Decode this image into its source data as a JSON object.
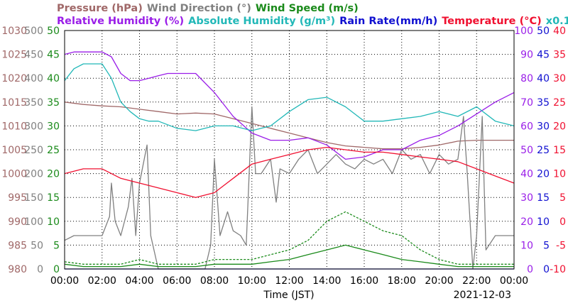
{
  "chart_data": {
    "type": "line",
    "legend": {
      "line1": [
        {
          "text": "Pressure (hPa)",
          "color": "#a06868"
        },
        {
          "text": "Wind Direction (°)",
          "color": "#808080"
        },
        {
          "text": "Wind Speed (m/s)",
          "color": "#1a8a1a"
        }
      ],
      "line2": [
        {
          "text": "Relative Humidity (%)",
          "color": "#9a1ee8"
        },
        {
          "text": "Absolute Humidity (g/m³)",
          "color": "#22b8b8"
        },
        {
          "text": "Rain Rate(mm/h)",
          "color": "#1010d0"
        },
        {
          "text": "Temperature (°C)",
          "color": "#f01030"
        },
        {
          "text": "x0.1",
          "color": "#22b8b8"
        }
      ]
    },
    "xlabel": "Time (JST)",
    "date": "2021-12-03",
    "x_ticks": [
      "00:00",
      "02:00",
      "04:00",
      "06:00",
      "08:00",
      "10:00",
      "12:00",
      "14:00",
      "16:00",
      "18:00",
      "20:00",
      "22:00",
      "00:00"
    ],
    "left_axes": [
      {
        "name": "Pressure (hPa)",
        "color": "#a06868",
        "ticks": [
          "980",
          "985",
          "990",
          "995",
          "1000",
          "1005",
          "1010",
          "1015",
          "1020",
          "1025",
          "1030"
        ],
        "range": [
          980,
          1030
        ]
      },
      {
        "name": "Wind Direction (°)",
        "color": "#808080",
        "ticks": [
          "0",
          "50",
          "100",
          "150",
          "200",
          "250",
          "300",
          "350",
          "400",
          "450",
          "500"
        ],
        "range": [
          0,
          500
        ]
      },
      {
        "name": "Wind Speed (m/s)",
        "color": "#1a8a1a",
        "ticks": [
          "0",
          "5",
          "10",
          "15",
          "20",
          "25",
          "30",
          "35",
          "40",
          "45",
          "50"
        ],
        "range": [
          0,
          50
        ]
      }
    ],
    "right_axes": [
      {
        "name": "Relative Humidity (%)",
        "color": "#9a1ee8",
        "ticks": [
          "0",
          "10",
          "20",
          "30",
          "40",
          "50",
          "60",
          "70",
          "80",
          "90",
          "100"
        ],
        "range": [
          0,
          100
        ]
      },
      {
        "name": "Rain Rate(mm/h)",
        "color": "#1010d0",
        "ticks": [
          "0",
          "5",
          "10",
          "15",
          "20",
          "25",
          "30",
          "35",
          "40",
          "45",
          "50"
        ],
        "range": [
          0,
          50
        ]
      },
      {
        "name": "Temperature (°C)",
        "color": "#f01030",
        "ticks": [
          "-10",
          "-5",
          "0",
          "5",
          "10",
          "15",
          "20",
          "25",
          "30",
          "35",
          "40"
        ],
        "range": [
          -10,
          40
        ]
      }
    ],
    "x_range_hours": [
      0,
      24
    ],
    "grid": true,
    "series": [
      {
        "name": "Pressure (hPa)",
        "axis": "Pressure (hPa)",
        "color": "#a06868",
        "x": [
          0,
          1,
          2,
          3,
          4,
          5,
          6,
          7,
          8,
          9,
          10,
          11,
          12,
          13,
          14,
          15,
          16,
          17,
          18,
          19,
          20,
          21,
          22,
          23,
          24
        ],
        "y": [
          1015,
          1014.5,
          1014.2,
          1014,
          1013.5,
          1013,
          1012.5,
          1012.7,
          1012.5,
          1011.5,
          1010.5,
          1009.5,
          1008.5,
          1007.5,
          1006.5,
          1005.8,
          1005.5,
          1005.2,
          1005.2,
          1005.5,
          1006,
          1006.8,
          1007,
          1007,
          1007
        ]
      },
      {
        "name": "Wind Direction (°)",
        "axis": "Wind Direction (°)",
        "color": "#808080",
        "x": [
          0,
          0.5,
          1,
          1.5,
          2,
          2.4,
          2.5,
          2.7,
          3,
          3.4,
          3.6,
          3.8,
          4,
          4.4,
          4.6,
          5,
          6,
          7,
          7.5,
          7.8,
          8,
          8.3,
          8.7,
          9,
          9.4,
          9.7,
          10,
          10.2,
          10.5,
          11,
          11.3,
          11.5,
          12,
          12.5,
          13,
          13.5,
          14,
          14.5,
          15,
          15.5,
          16,
          16.5,
          17,
          17.5,
          18,
          18.5,
          19,
          19.5,
          20,
          20.5,
          21,
          21.3,
          21.5,
          21.8,
          22,
          22.3,
          22.5,
          23,
          23.5,
          24
        ],
        "y": [
          60,
          70,
          70,
          70,
          70,
          110,
          180,
          100,
          70,
          130,
          190,
          70,
          180,
          260,
          70,
          0,
          0,
          0,
          0,
          50,
          230,
          70,
          120,
          80,
          70,
          50,
          340,
          200,
          200,
          230,
          140,
          210,
          200,
          230,
          250,
          200,
          220,
          240,
          220,
          210,
          230,
          220,
          230,
          200,
          250,
          230,
          240,
          200,
          240,
          220,
          230,
          320,
          200,
          0,
          70,
          320,
          40,
          70,
          70,
          70
        ]
      },
      {
        "name": "Wind Speed (m/s)",
        "axis": "Wind Speed (m/s)",
        "color": "#1a8a1a",
        "x": [
          0,
          1,
          2,
          3,
          4,
          5,
          6,
          7,
          8,
          9,
          10,
          11,
          12,
          13,
          14,
          15,
          16,
          17,
          18,
          19,
          20,
          21,
          22,
          23,
          24
        ],
        "y": [
          1,
          0.5,
          0.5,
          0.5,
          1,
          0.5,
          0.5,
          0.5,
          1,
          1,
          1,
          1.5,
          2,
          3,
          4,
          5,
          4,
          3,
          2,
          1.5,
          1,
          0.5,
          0.5,
          0.5,
          0.5
        ]
      },
      {
        "name": "Wind Speed Max",
        "axis": "Wind Speed (m/s)",
        "color": "#1a8a1a",
        "dashed": true,
        "x": [
          0,
          1,
          2,
          3,
          4,
          5,
          6,
          7,
          8,
          9,
          10,
          11,
          12,
          13,
          14,
          15,
          16,
          17,
          18,
          19,
          20,
          21,
          22,
          23,
          24
        ],
        "y": [
          1.5,
          1,
          1,
          1,
          2,
          1,
          1,
          1,
          2,
          2,
          2,
          3,
          4,
          6,
          10,
          12,
          10,
          8,
          7,
          4,
          2,
          1,
          1,
          1,
          1
        ]
      },
      {
        "name": "Relative Humidity (%)",
        "axis": "Relative Humidity (%)",
        "color": "#9a1ee8",
        "x": [
          0,
          0.5,
          1,
          1.5,
          2,
          2.5,
          3,
          3.5,
          4,
          4.5,
          5,
          5.5,
          6,
          7,
          8,
          9,
          10,
          11,
          12,
          13,
          14,
          15,
          16,
          17,
          18,
          19,
          20,
          21,
          22,
          23,
          24
        ],
        "y": [
          90,
          91,
          91,
          91,
          91,
          89,
          82,
          79,
          79,
          80,
          81,
          82,
          82,
          82,
          74,
          64,
          57,
          54,
          54,
          55,
          52,
          46,
          47,
          50,
          50,
          54,
          56,
          60,
          65,
          70,
          74
        ]
      },
      {
        "name": "Absolute Humidity (g/m³)",
        "axis": "Relative Humidity (%)",
        "color": "#22b8b8",
        "x": [
          0,
          0.5,
          1,
          1.5,
          2,
          2.5,
          3,
          3.5,
          4,
          4.5,
          5,
          6,
          7,
          8,
          9,
          10,
          11,
          12,
          13,
          14,
          15,
          16,
          17,
          18,
          19,
          20,
          21,
          22,
          23,
          24
        ],
        "y": [
          79,
          84,
          86,
          86,
          86,
          80,
          70,
          66,
          63,
          62,
          62,
          59,
          58,
          60,
          60,
          58,
          60,
          66,
          71,
          72,
          68,
          62,
          62,
          63,
          64,
          66,
          64,
          68,
          62,
          60
        ]
      },
      {
        "name": "Rain Rate(mm/h)",
        "axis": "Rain Rate(mm/h)",
        "color": "#1010d0",
        "x": [
          0,
          24
        ],
        "y": [
          0,
          0
        ]
      },
      {
        "name": "Temperature (°C)",
        "axis": "Temperature (°C)",
        "color": "#f01030",
        "x": [
          0,
          1,
          2,
          3,
          4,
          5,
          6,
          7,
          8,
          9,
          10,
          11,
          12,
          13,
          14,
          15,
          16,
          17,
          18,
          19,
          20,
          21,
          22,
          23,
          24
        ],
        "y": [
          10,
          11,
          11,
          9,
          8,
          7,
          6,
          5,
          6,
          9,
          12,
          13,
          14,
          15,
          15.5,
          15,
          14.5,
          14.5,
          14,
          13.5,
          13,
          12.5,
          11,
          9.5,
          8
        ]
      }
    ]
  }
}
